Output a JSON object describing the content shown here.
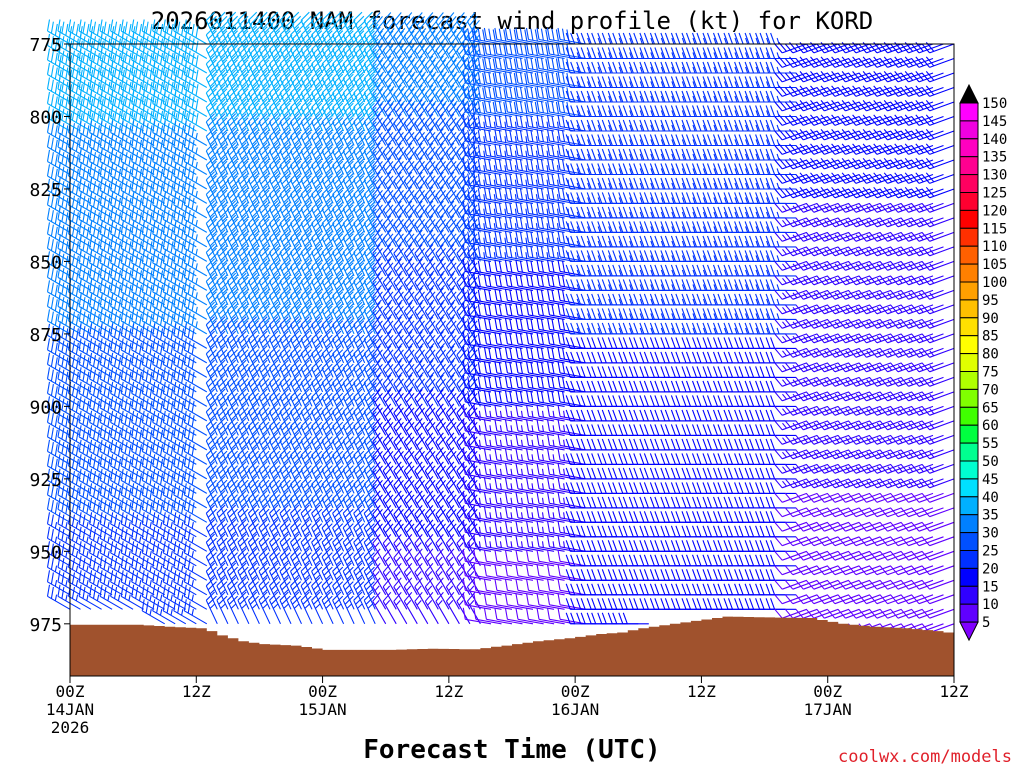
{
  "chart_data": {
    "type": "wind-barb-profile",
    "title": "2026011400 NAM forecast wind profile (kt) for KORD",
    "xlabel": "Forecast Time (UTC)",
    "ylabel": "",
    "y_ticks": [
      "775",
      "800",
      "825",
      "850",
      "875",
      "900",
      "925",
      "950",
      "975"
    ],
    "ylim": [
      775,
      993
    ],
    "x_ticks": [
      {
        "hour": 0,
        "lines": [
          "00Z",
          "14JAN",
          "2026"
        ]
      },
      {
        "hour": 12,
        "lines": [
          "12Z"
        ]
      },
      {
        "hour": 24,
        "lines": [
          "00Z",
          "15JAN"
        ]
      },
      {
        "hour": 36,
        "lines": [
          "12Z"
        ]
      },
      {
        "hour": 48,
        "lines": [
          "00Z",
          "16JAN"
        ]
      },
      {
        "hour": 60,
        "lines": [
          "12Z"
        ]
      },
      {
        "hour": 72,
        "lines": [
          "00Z",
          "17JAN"
        ]
      },
      {
        "hour": 84,
        "lines": [
          "12Z"
        ]
      }
    ],
    "xlim": [
      0,
      84
    ],
    "legend": {
      "placement": "right",
      "labels": [
        "150",
        "145",
        "140",
        "135",
        "130",
        "125",
        "120",
        "115",
        "110",
        "105",
        "100",
        "95",
        "90",
        "85",
        "80",
        "75",
        "70",
        "65",
        "60",
        "55",
        "50",
        "45",
        "40",
        "35",
        "30",
        "25",
        "20",
        "15",
        "10",
        "5"
      ],
      "colors": [
        "#ff00ff",
        "#f000e0",
        "#ff00c0",
        "#ff0090",
        "#ff0060",
        "#ff0030",
        "#ff0000",
        "#ff3000",
        "#ff6000",
        "#ff8000",
        "#ffa000",
        "#ffc000",
        "#ffe000",
        "#ffff00",
        "#e0ff00",
        "#b0ff00",
        "#80ff00",
        "#40ff00",
        "#00ff40",
        "#00ff90",
        "#00ffd0",
        "#00e0ff",
        "#00b0ff",
        "#0080ff",
        "#0050ff",
        "#0030ff",
        "#0000ff",
        "#3000ff",
        "#6000ff",
        "#8000ff"
      ]
    },
    "terrain_color": "#a0522d",
    "surface_pressure": [
      {
        "hour": 0,
        "p": 975.3
      },
      {
        "hour": 3,
        "p": 975.3
      },
      {
        "hour": 6,
        "p": 975.3
      },
      {
        "hour": 9,
        "p": 976.0
      },
      {
        "hour": 12,
        "p": 976.5
      },
      {
        "hour": 13,
        "p": 977.5
      },
      {
        "hour": 14,
        "p": 979.0
      },
      {
        "hour": 16,
        "p": 981.0
      },
      {
        "hour": 18,
        "p": 982.0
      },
      {
        "hour": 21,
        "p": 982.5
      },
      {
        "hour": 23,
        "p": 983.5
      },
      {
        "hour": 24,
        "p": 984.0
      },
      {
        "hour": 30,
        "p": 984.0
      },
      {
        "hour": 34,
        "p": 983.6
      },
      {
        "hour": 38,
        "p": 983.8
      },
      {
        "hour": 41,
        "p": 982.5
      },
      {
        "hour": 44,
        "p": 981.0
      },
      {
        "hour": 47,
        "p": 980.0
      },
      {
        "hour": 50,
        "p": 978.5
      },
      {
        "hour": 52,
        "p": 978.0
      },
      {
        "hour": 54,
        "p": 976.5
      },
      {
        "hour": 57,
        "p": 975.0
      },
      {
        "hour": 60,
        "p": 973.5
      },
      {
        "hour": 62,
        "p": 972.5
      },
      {
        "hour": 66,
        "p": 972.8
      },
      {
        "hour": 70,
        "p": 973.0
      },
      {
        "hour": 73,
        "p": 975.0
      },
      {
        "hour": 76,
        "p": 976.0
      },
      {
        "hour": 79,
        "p": 976.5
      },
      {
        "hour": 82,
        "p": 977.5
      },
      {
        "hour": 84,
        "p": 978.5
      }
    ],
    "barb_pressure_levels": [
      775,
      780,
      785,
      790,
      795,
      800,
      805,
      810,
      815,
      820,
      825,
      830,
      835,
      840,
      845,
      850,
      855,
      860,
      865,
      870,
      875,
      880,
      885,
      890,
      895,
      900,
      905,
      910,
      915,
      920,
      925,
      930,
      935,
      940,
      945,
      950,
      955,
      960,
      965,
      970,
      975
    ],
    "barb_hours": [
      0,
      1,
      2,
      3,
      4,
      5,
      6,
      7,
      8,
      9,
      10,
      11,
      12,
      13,
      14,
      15,
      16,
      17,
      18,
      19,
      20,
      21,
      22,
      23,
      24,
      25,
      26,
      27,
      28,
      29,
      30,
      31,
      32,
      33,
      34,
      35,
      36,
      37,
      38,
      39,
      40,
      41,
      42,
      43,
      44,
      45,
      46,
      47,
      48,
      49,
      50,
      51,
      52,
      53,
      54,
      55,
      56,
      57,
      58,
      59,
      60,
      61,
      62,
      63,
      64,
      65,
      66,
      67,
      68,
      69,
      70,
      71,
      72,
      73,
      74,
      75,
      76,
      77,
      78,
      79,
      80,
      81,
      82,
      83,
      84
    ],
    "wind_regimes": [
      {
        "hours": [
          0,
          14
        ],
        "direction_deg": 300,
        "speed_kt_top": 40,
        "speed_kt_bottom": 25
      },
      {
        "hours": [
          14,
          30
        ],
        "direction_deg": 335,
        "speed_kt_top": 40,
        "speed_kt_bottom": 25
      },
      {
        "hours": [
          30,
          40
        ],
        "direction_deg": 330,
        "speed_kt_top": 35,
        "speed_kt_bottom": 15
      },
      {
        "hours": [
          40,
          50
        ],
        "direction_deg": 280,
        "speed_kt_top": 30,
        "speed_kt_bottom": 10
      },
      {
        "hours": [
          50,
          70
        ],
        "direction_deg": 270,
        "speed_kt_top": 25,
        "speed_kt_bottom": 20
      },
      {
        "hours": [
          70,
          84
        ],
        "direction_deg": 250,
        "speed_kt_top": 20,
        "speed_kt_bottom": 10
      }
    ]
  },
  "credit": "coolwx.com/models"
}
